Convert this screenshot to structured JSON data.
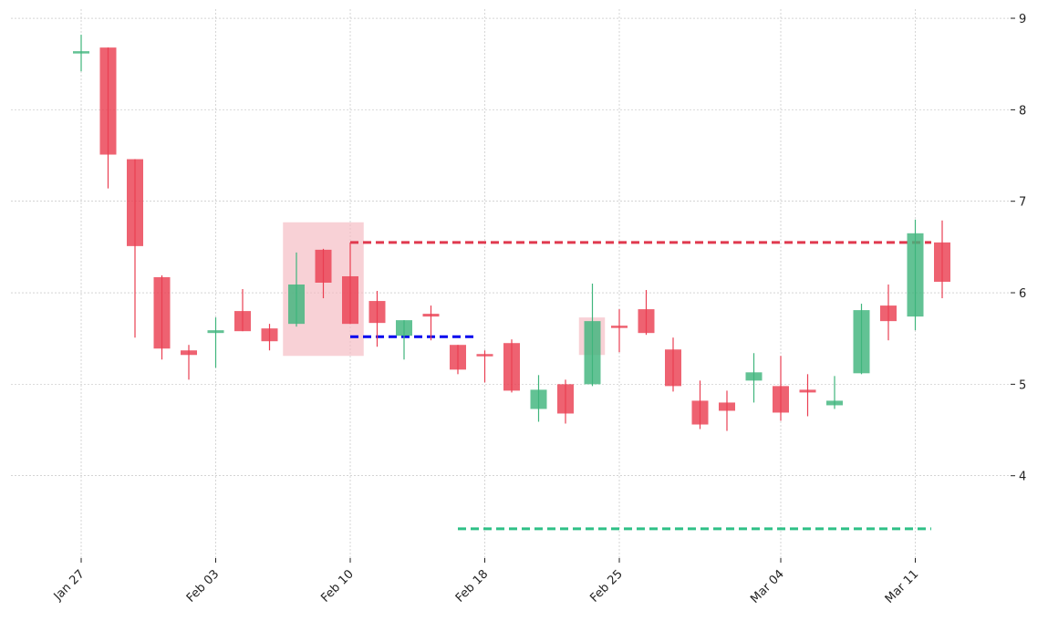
{
  "chart_data": {
    "type": "candlestick",
    "title": "",
    "xlabel": "",
    "ylabel": "",
    "ylim": [
      3.1,
      9.1
    ],
    "y_ticks": [
      4,
      5,
      6,
      7,
      8,
      9
    ],
    "y_axis_side": "right",
    "grid": true,
    "x_tick_labels": [
      {
        "date": "2020-01-27",
        "label": "Jan 27"
      },
      {
        "date": "2020-02-03",
        "label": "Feb 03"
      },
      {
        "date": "2020-02-10",
        "label": "Feb 10"
      },
      {
        "date": "2020-02-18",
        "label": "Feb 18"
      },
      {
        "date": "2020-02-25",
        "label": "Feb 25"
      },
      {
        "date": "2020-03-04",
        "label": "Mar 04"
      },
      {
        "date": "2020-03-11",
        "label": "Mar 11"
      }
    ],
    "colors": {
      "up": "#3fb57c",
      "down": "#ea3f52",
      "grid": "#bbbbbb",
      "highlight": "#f5b8c0",
      "support": "#0000ee",
      "resistance": "#e0394e",
      "target": "#2ec086"
    },
    "candles": [
      {
        "date": "2020-01-27",
        "open": 8.62,
        "high": 8.82,
        "low": 8.42,
        "close": 8.64
      },
      {
        "date": "2020-01-28",
        "open": 8.68,
        "high": 8.68,
        "low": 7.14,
        "close": 7.51
      },
      {
        "date": "2020-01-29",
        "open": 7.46,
        "high": 7.46,
        "low": 5.51,
        "close": 6.51
      },
      {
        "date": "2020-01-30",
        "open": 6.17,
        "high": 6.19,
        "low": 5.27,
        "close": 5.39
      },
      {
        "date": "2020-01-31",
        "open": 5.37,
        "high": 5.43,
        "low": 5.05,
        "close": 5.32
      },
      {
        "date": "2020-02-03",
        "open": 5.56,
        "high": 5.73,
        "low": 5.18,
        "close": 5.59
      },
      {
        "date": "2020-02-04",
        "open": 5.8,
        "high": 6.04,
        "low": 5.58,
        "close": 5.58
      },
      {
        "date": "2020-02-05",
        "open": 5.61,
        "high": 5.66,
        "low": 5.37,
        "close": 5.47
      },
      {
        "date": "2020-02-06",
        "open": 5.66,
        "high": 6.44,
        "low": 5.63,
        "close": 6.09
      },
      {
        "date": "2020-02-07",
        "open": 6.47,
        "high": 6.48,
        "low": 5.94,
        "close": 6.11
      },
      {
        "date": "2020-02-10",
        "open": 6.18,
        "high": 6.55,
        "low": 5.66,
        "close": 5.66
      },
      {
        "date": "2020-02-11",
        "open": 5.91,
        "high": 6.02,
        "low": 5.41,
        "close": 5.67
      },
      {
        "date": "2020-02-12",
        "open": 5.53,
        "high": 5.7,
        "low": 5.27,
        "close": 5.7
      },
      {
        "date": "2020-02-13",
        "open": 5.77,
        "high": 5.86,
        "low": 5.48,
        "close": 5.74
      },
      {
        "date": "2020-02-14",
        "open": 5.43,
        "high": 5.43,
        "low": 5.11,
        "close": 5.16
      },
      {
        "date": "2020-02-18",
        "open": 5.33,
        "high": 5.37,
        "low": 5.02,
        "close": 5.31
      },
      {
        "date": "2020-02-19",
        "open": 5.45,
        "high": 5.49,
        "low": 4.91,
        "close": 4.93
      },
      {
        "date": "2020-02-20",
        "open": 4.73,
        "high": 5.1,
        "low": 4.59,
        "close": 4.94
      },
      {
        "date": "2020-02-21",
        "open": 5.0,
        "high": 5.05,
        "low": 4.57,
        "close": 4.68
      },
      {
        "date": "2020-02-24",
        "open": 5.0,
        "high": 6.1,
        "low": 4.98,
        "close": 5.69
      },
      {
        "date": "2020-02-25",
        "open": 5.64,
        "high": 5.82,
        "low": 5.35,
        "close": 5.62
      },
      {
        "date": "2020-02-26",
        "open": 5.82,
        "high": 6.03,
        "low": 5.54,
        "close": 5.56
      },
      {
        "date": "2020-02-27",
        "open": 5.38,
        "high": 5.51,
        "low": 4.92,
        "close": 4.98
      },
      {
        "date": "2020-02-28",
        "open": 4.82,
        "high": 5.04,
        "low": 4.51,
        "close": 4.56
      },
      {
        "date": "2020-03-02",
        "open": 4.8,
        "high": 4.93,
        "low": 4.49,
        "close": 4.71
      },
      {
        "date": "2020-03-03",
        "open": 5.04,
        "high": 5.34,
        "low": 4.8,
        "close": 5.13
      },
      {
        "date": "2020-03-04",
        "open": 4.98,
        "high": 5.31,
        "low": 4.6,
        "close": 4.69
      },
      {
        "date": "2020-03-05",
        "open": 4.94,
        "high": 5.11,
        "low": 4.65,
        "close": 4.91
      },
      {
        "date": "2020-03-06",
        "open": 4.77,
        "high": 5.09,
        "low": 4.73,
        "close": 4.82
      },
      {
        "date": "2020-03-09",
        "open": 5.12,
        "high": 5.88,
        "low": 5.11,
        "close": 5.81
      },
      {
        "date": "2020-03-10",
        "open": 5.86,
        "high": 6.09,
        "low": 5.48,
        "close": 5.69
      },
      {
        "date": "2020-03-11",
        "open": 5.74,
        "high": 6.8,
        "low": 5.59,
        "close": 6.65
      },
      {
        "date": "2020-03-12",
        "open": 6.55,
        "high": 6.79,
        "low": 5.94,
        "close": 6.12
      }
    ],
    "highlight_zones": [
      {
        "from": "2020-02-06",
        "to": "2020-02-10",
        "low": 5.31,
        "high": 6.77
      },
      {
        "from": "2020-02-24",
        "to": "2020-02-24",
        "low": 5.32,
        "high": 5.73
      }
    ],
    "lines": [
      {
        "role": "resistance",
        "y": 6.55,
        "from": "2020-02-10",
        "to": "2020-03-12",
        "style": "dashed"
      },
      {
        "role": "support",
        "y": 5.52,
        "from": "2020-02-10",
        "to": "2020-02-14",
        "style": "dashed"
      },
      {
        "role": "target",
        "y": 3.42,
        "from": "2020-02-14",
        "to": "2020-03-12",
        "style": "dashed"
      }
    ]
  }
}
